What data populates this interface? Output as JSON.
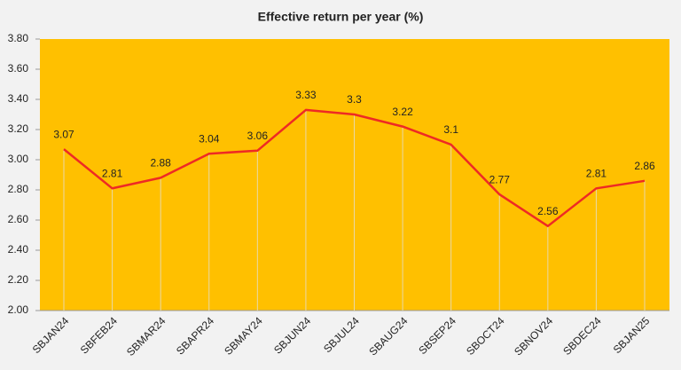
{
  "chart_data": {
    "type": "line",
    "title": "Effective  return per year (%)",
    "categories": [
      "SBJAN24",
      "SBFEB24",
      "SBMAR24",
      "SBAPR24",
      "SBMAY24",
      "SBJUN24",
      "SBJUL24",
      "SBAUG24",
      "SBSEP24",
      "SBOCT24",
      "SBNOV24",
      "SBDEC24",
      "SBJAN25"
    ],
    "values": [
      3.07,
      2.81,
      2.88,
      3.04,
      3.06,
      3.33,
      3.3,
      3.22,
      3.1,
      2.77,
      2.56,
      2.81,
      2.86
    ],
    "color": "#ee2a24",
    "plot_color": "#ffc000",
    "ylim": [
      2.0,
      3.8
    ],
    "yticks": [
      {
        "value": 2.0,
        "label": "2.00"
      },
      {
        "value": 2.2,
        "label": "2.20"
      },
      {
        "value": 2.4,
        "label": "2.40"
      },
      {
        "value": 2.6,
        "label": "2.60"
      },
      {
        "value": 2.8,
        "label": "2.80"
      },
      {
        "value": 3.0,
        "label": "3.00"
      },
      {
        "value": 3.2,
        "label": "3.20"
      },
      {
        "value": 3.4,
        "label": "3.40"
      },
      {
        "value": 3.6,
        "label": "3.60"
      },
      {
        "value": 3.8,
        "label": "3.80"
      }
    ],
    "drop_lines": true
  }
}
